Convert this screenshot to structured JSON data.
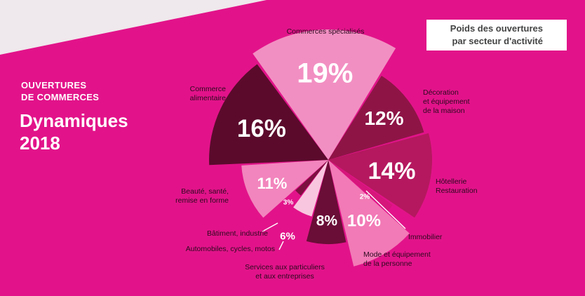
{
  "header": {
    "kicker_line1": "OUVERTURES",
    "kicker_line2": "DE COMMERCES",
    "title_line1": "Dynamiques",
    "title_line2": "2018"
  },
  "badge": {
    "line1": "Poids des ouvertures",
    "line2": "par secteur d'activité"
  },
  "colors": {
    "background": "#e2138a",
    "band": "#efe8ec",
    "leader": "#ffffff",
    "category_text": "#2b0a1e"
  },
  "chart_data": {
    "type": "pie",
    "title": "Poids des ouvertures par secteur d'activité",
    "slices": [
      {
        "label": "Commerces spécialisés",
        "value": 19,
        "value_label": "19%",
        "color": "#f28fc2"
      },
      {
        "label": "Décoration et équipement de la maison",
        "value": 12,
        "value_label": "12%",
        "color": "#8e1446"
      },
      {
        "label": "Hôtellerie Restauration",
        "value": 14,
        "value_label": "14%",
        "color": "#b5185f"
      },
      {
        "label": "Immobilier",
        "value": 2,
        "value_label": "2%",
        "color": "#d6167a"
      },
      {
        "label": "Mode et équipement de la personne",
        "value": 10,
        "value_label": "10%",
        "color": "#f27ab6"
      },
      {
        "label": "Services aux particuliers et aux entreprises",
        "value": 8,
        "value_label": "8%",
        "color": "#6a0d37"
      },
      {
        "label": "Automobiles, cycles, motos",
        "value": 6,
        "value_label": "6%",
        "color": "#f9c6df"
      },
      {
        "label": "Bâtiment, industrie",
        "value": 3,
        "value_label": "3%",
        "color": "#7c1140"
      },
      {
        "label": "Beauté, santé, remise en forme",
        "value": 11,
        "value_label": "11%",
        "color": "#f285bd"
      },
      {
        "label": "Commerce alimentaire",
        "value": 16,
        "value_label": "16%",
        "color": "#5b0a2c"
      }
    ]
  }
}
